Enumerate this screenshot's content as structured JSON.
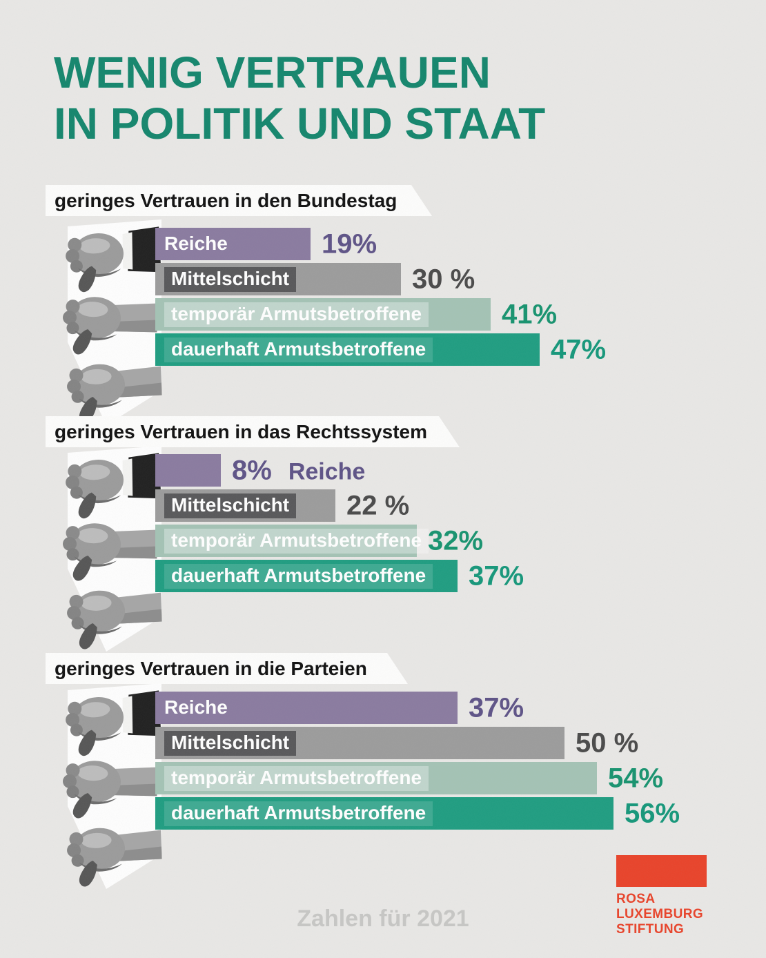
{
  "title": {
    "line1": "WENIG VERTRAUEN",
    "line2": "IN POLITIK UND STAAT"
  },
  "footer": {
    "note": "Zahlen für 2021"
  },
  "logo": {
    "line1": "ROSA",
    "line2": "LUXEMBURG",
    "line3": "STIFTUNG"
  },
  "colors": {
    "background": "#e9e8e6",
    "title": "#14866d",
    "header_text": "#111111",
    "band_bg": "#fdfdfc",
    "footer_text": "#c7c7c5",
    "logo_red": "#e9432a",
    "rows": [
      {
        "bar": "#8a7ba0",
        "value": "#5e5387"
      },
      {
        "bar": "#9c9c9c",
        "value": "#4a4a4a"
      },
      {
        "bar": "#a4c3b5",
        "value": "#17936f"
      },
      {
        "bar": "#1f9d81",
        "value": "#15977a"
      }
    ]
  },
  "chart_data": {
    "type": "bar",
    "orientation": "horizontal",
    "unit": "percent",
    "value_range": [
      0,
      100
    ],
    "categories": [
      "Reiche",
      "Mittelschicht",
      "temporär Armutsbetroffene",
      "dauerhaft Armutsbetroffene"
    ],
    "groups": [
      {
        "title": "geringes Vertrauen in den Bundestag",
        "rows": [
          {
            "label": "Reiche",
            "value": 19,
            "value_label": "19%",
            "label_position": "inside"
          },
          {
            "label": "Mittelschicht",
            "value": 30,
            "value_label": "30 %",
            "label_position": "inside"
          },
          {
            "label": "temporär Armutsbetroffene",
            "value": 41,
            "value_label": "41%",
            "label_position": "inside"
          },
          {
            "label": "dauerhaft Armutsbetroffene",
            "value": 47,
            "value_label": "47%",
            "label_position": "inside"
          }
        ]
      },
      {
        "title": "geringes Vertrauen in das Rechtssystem",
        "rows": [
          {
            "label": "Reiche",
            "value": 8,
            "value_label": "8%",
            "label_position": "outside"
          },
          {
            "label": "Mittelschicht",
            "value": 22,
            "value_label": "22 %",
            "label_position": "inside"
          },
          {
            "label": "temporär Armutsbetroffene",
            "value": 32,
            "value_label": "32%",
            "label_position": "inside"
          },
          {
            "label": "dauerhaft Armutsbetroffene",
            "value": 37,
            "value_label": "37%",
            "label_position": "inside"
          }
        ]
      },
      {
        "title": "geringes Vertrauen in die Parteien",
        "rows": [
          {
            "label": "Reiche",
            "value": 37,
            "value_label": "37%",
            "label_position": "inside"
          },
          {
            "label": "Mittelschicht",
            "value": 50,
            "value_label": "50 %",
            "label_position": "inside"
          },
          {
            "label": "temporär Armutsbetroffene",
            "value": 54,
            "value_label": "54%",
            "label_position": "inside"
          },
          {
            "label": "dauerhaft Armutsbetroffene",
            "value": 56,
            "value_label": "56%",
            "label_position": "inside"
          }
        ]
      }
    ]
  }
}
